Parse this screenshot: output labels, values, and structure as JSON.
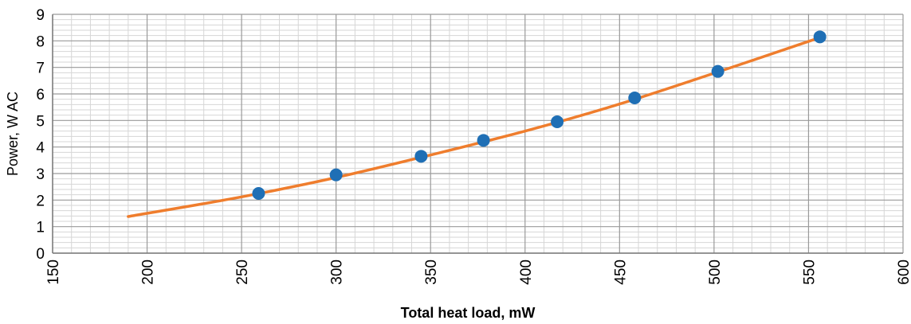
{
  "chart_data": {
    "type": "scatter",
    "title": "",
    "xlabel": "Total heat load, mW",
    "ylabel": "Power, W AC",
    "xlim": [
      150,
      600
    ],
    "ylim": [
      0,
      9
    ],
    "xticks": [
      "150",
      "200",
      "250",
      "300",
      "350",
      "400",
      "450",
      "500",
      "550",
      "600"
    ],
    "yticks": [
      "0",
      "1",
      "2",
      "3",
      "4",
      "5",
      "6",
      "7",
      "8",
      "9"
    ],
    "grid": true,
    "legend": "none",
    "series": [
      {
        "kind": "scatter",
        "color": "#1f6fb5",
        "x": [
          259,
          300,
          345,
          378,
          417,
          458,
          502,
          556
        ],
        "y": [
          2.25,
          2.95,
          3.65,
          4.25,
          4.95,
          5.85,
          6.85,
          8.15
        ]
      },
      {
        "kind": "line",
        "color": "#ef7d2d",
        "x": [
          190,
          250,
          300,
          350,
          400,
          450,
          500,
          555
        ],
        "y": [
          1.38,
          2.12,
          2.85,
          3.7,
          4.6,
          5.62,
          6.78,
          8.1
        ]
      }
    ]
  }
}
